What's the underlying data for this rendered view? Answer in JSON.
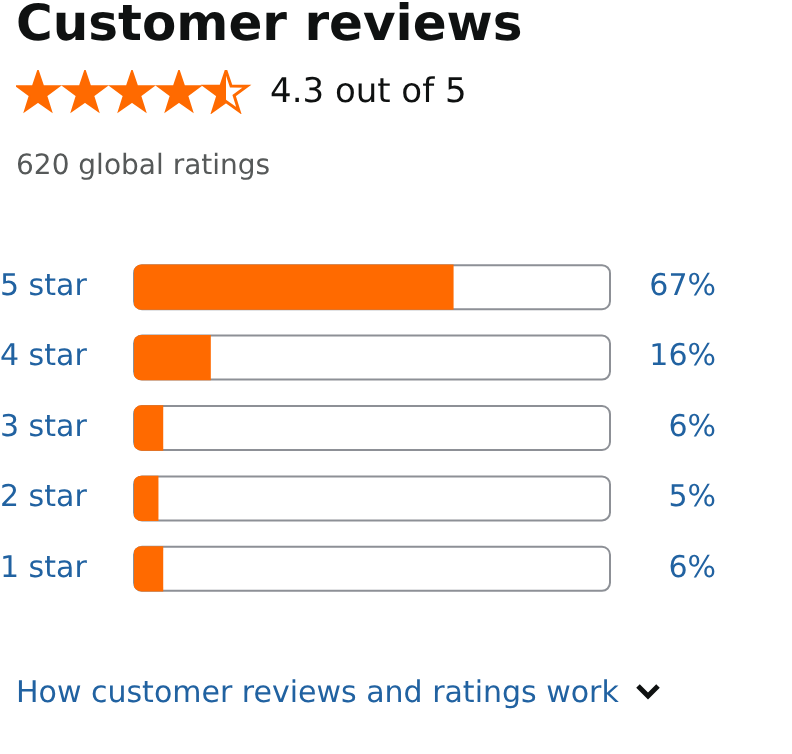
{
  "chart_data": {
    "type": "bar",
    "orientation": "horizontal",
    "title": "Customer reviews",
    "subtitle": "4.3 out of 5",
    "annotations": [
      "620 global ratings",
      "How customer reviews and ratings work"
    ],
    "categories": [
      "5 star",
      "4 star",
      "3 star",
      "2 star",
      "1 star"
    ],
    "values": [
      67,
      16,
      6,
      5,
      6
    ],
    "value_labels": [
      "67%",
      "16%",
      "6%",
      "5%",
      "6%"
    ],
    "color": "#ff6a00",
    "xlim": [
      0,
      100
    ],
    "tick_labels": "y"
  }
}
